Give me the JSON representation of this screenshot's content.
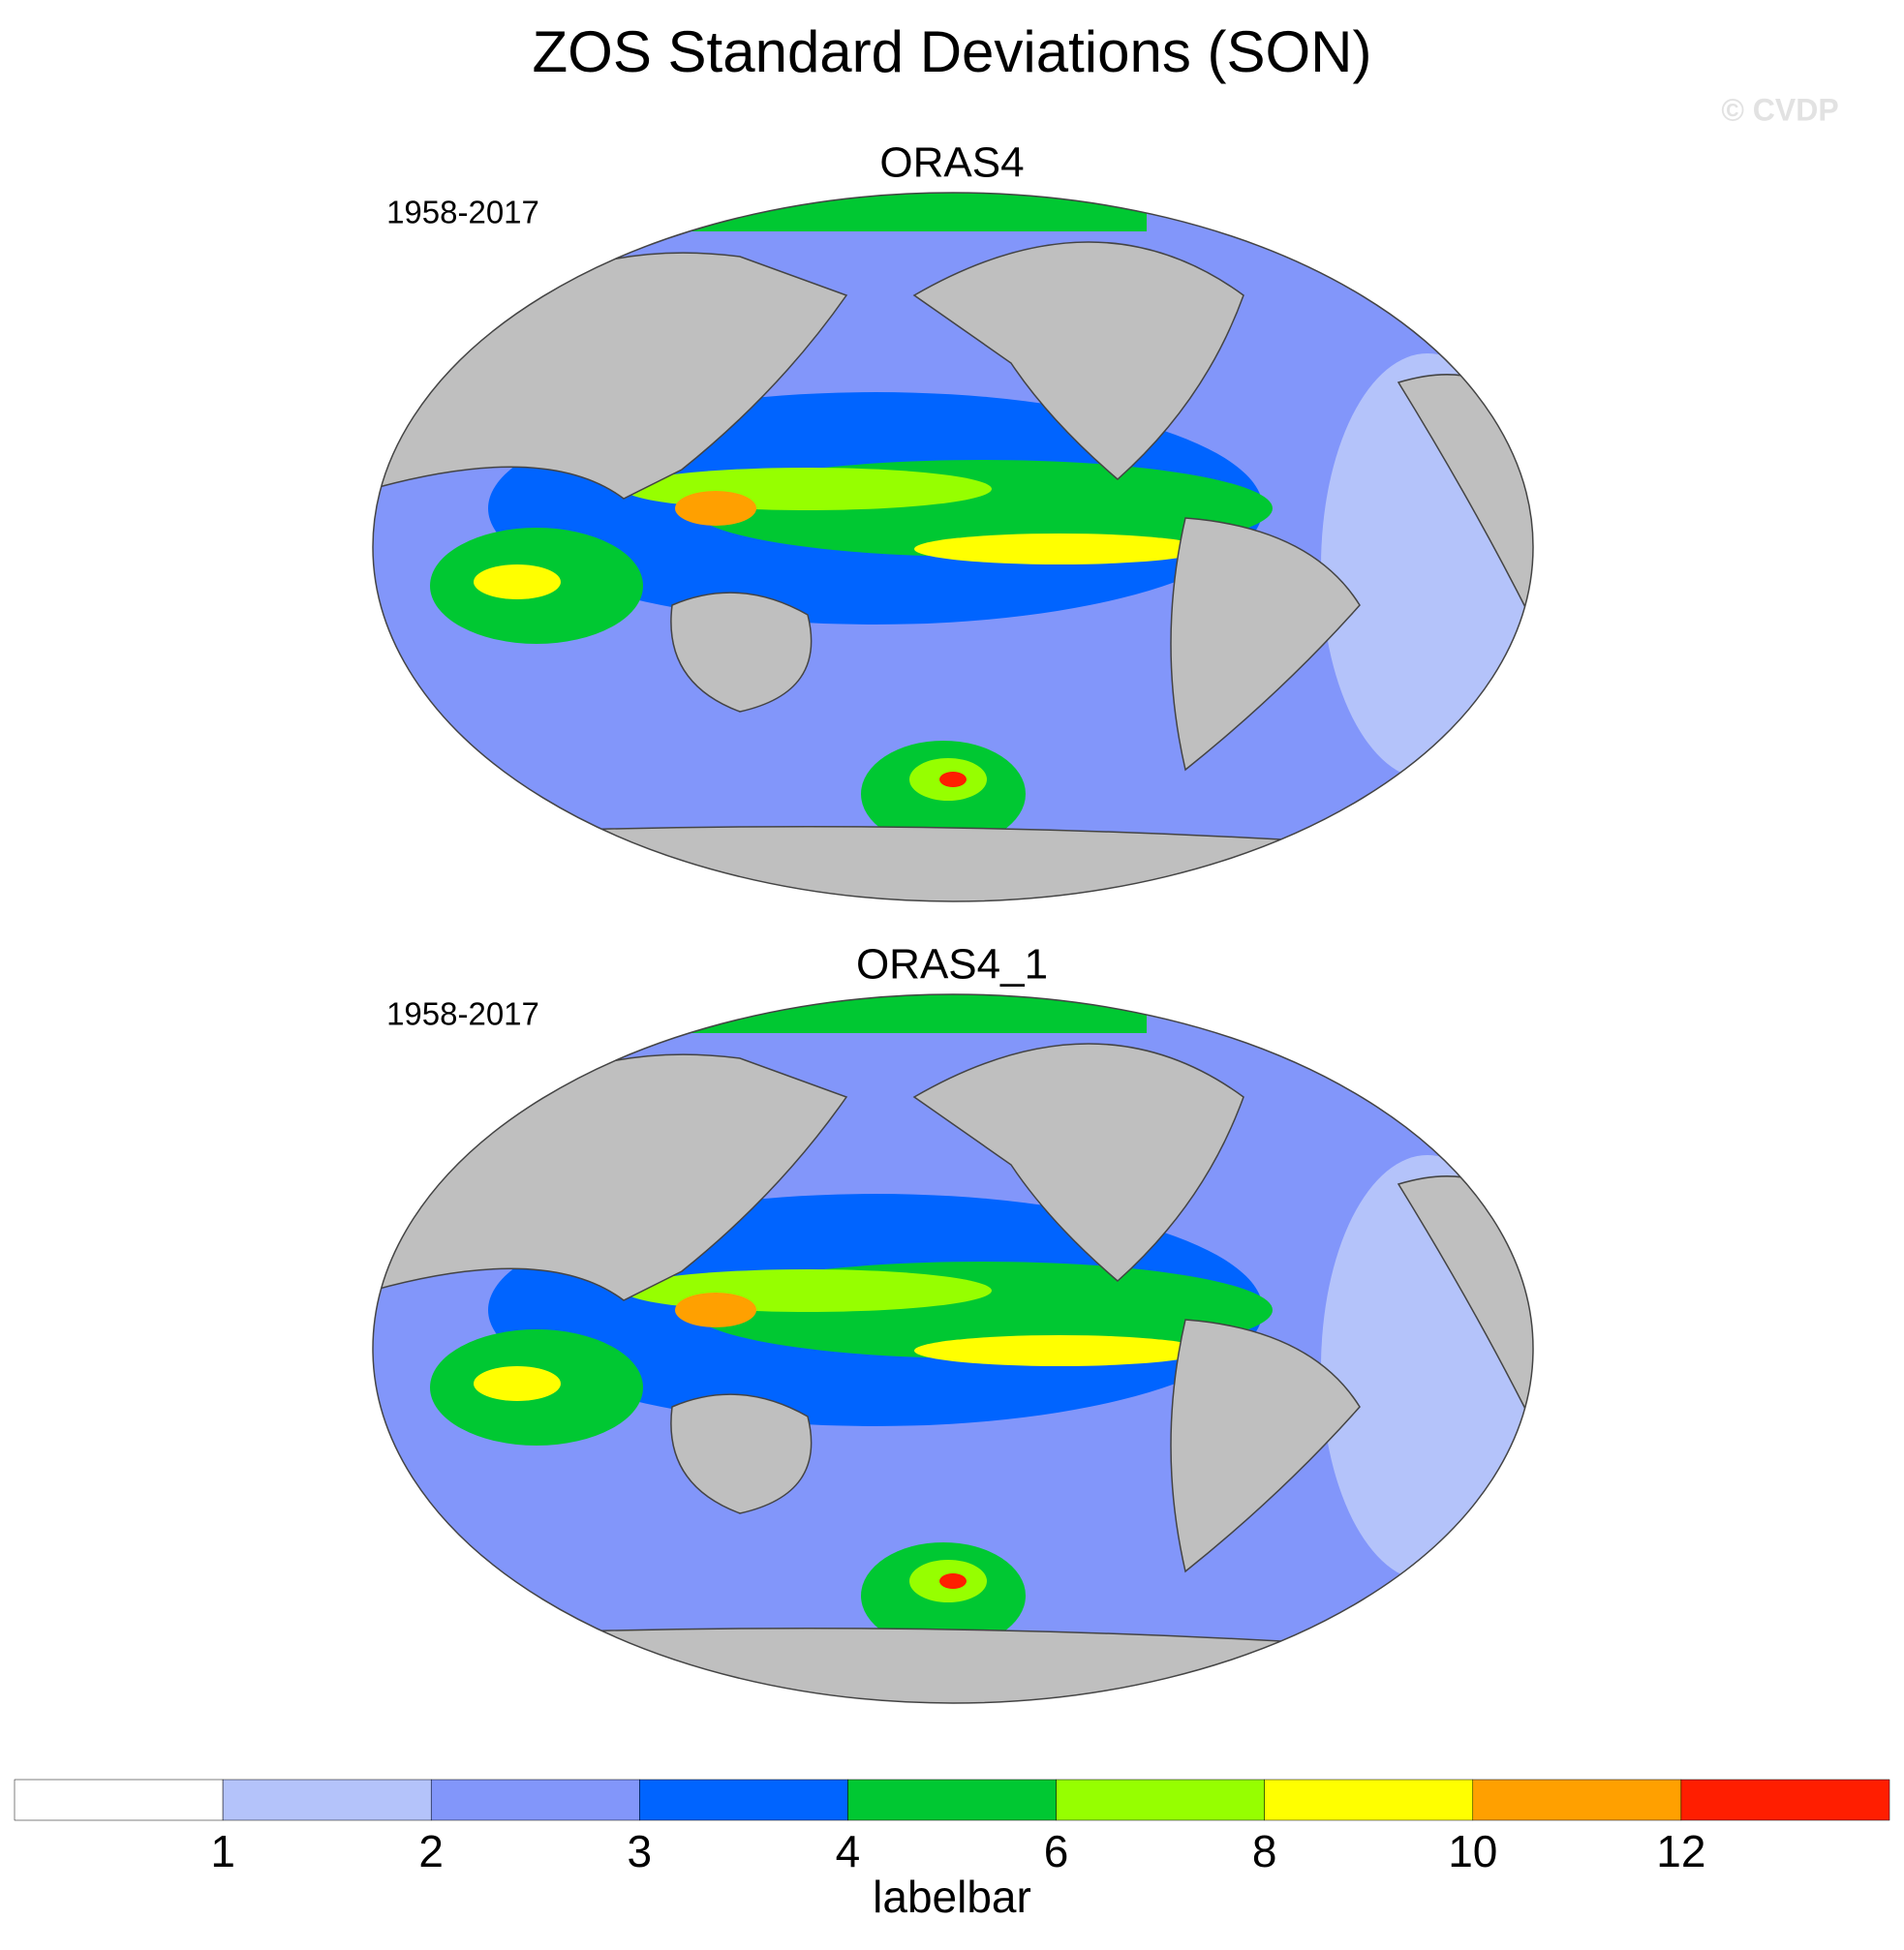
{
  "title": "ZOS Standard Deviations (SON)",
  "watermark": "© CVDP",
  "panels": [
    {
      "title": "ORAS4",
      "period": "1958-2017"
    },
    {
      "title": "ORAS4_1",
      "period": "1958-2017"
    }
  ],
  "labelbar": {
    "label": "labelbar",
    "levels": [
      1,
      2,
      3,
      4,
      6,
      8,
      10,
      12
    ],
    "colors": [
      "#ffffff",
      "#b4c3fa",
      "#8296fa",
      "#0064ff",
      "#00c832",
      "#96ff00",
      "#ffff00",
      "#ffa000",
      "#ff1e00"
    ]
  }
}
